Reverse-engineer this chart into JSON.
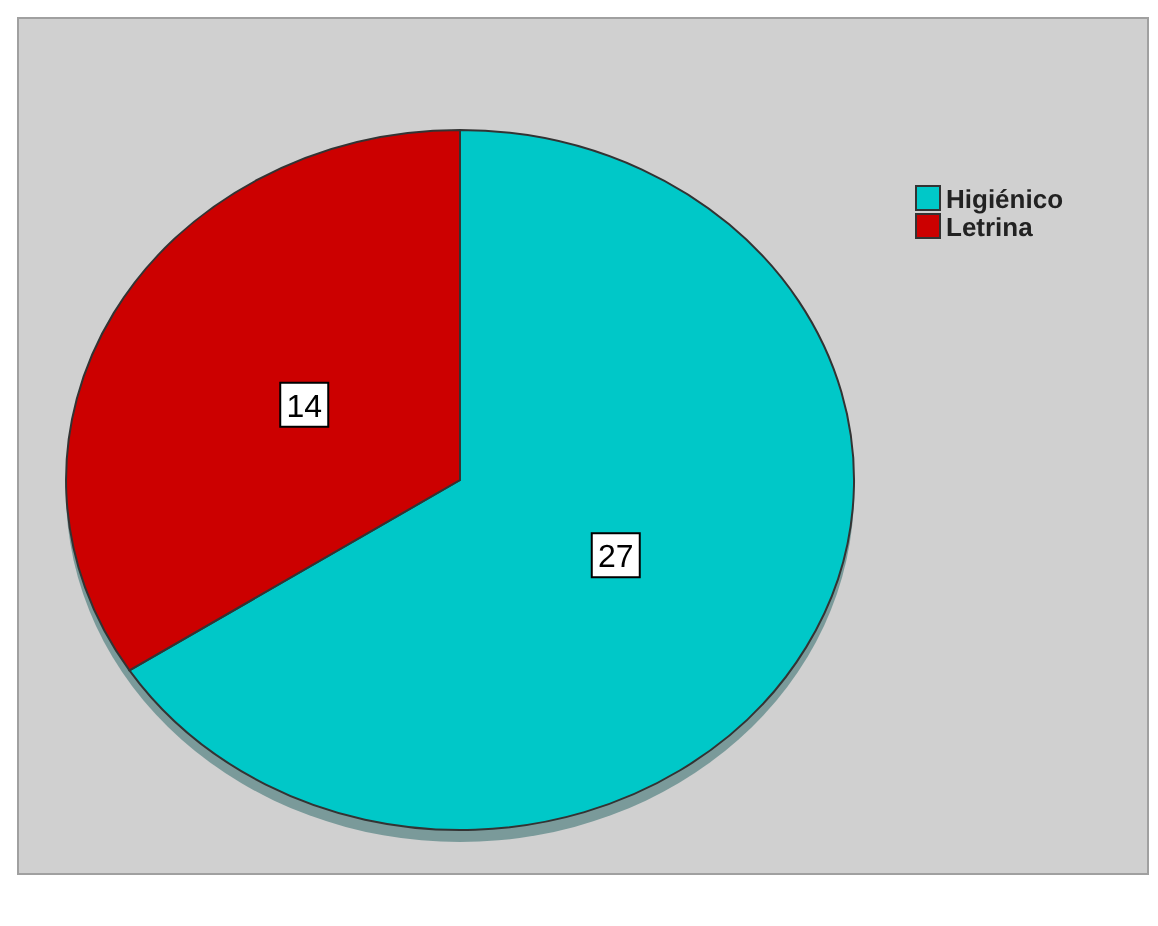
{
  "chart_data": {
    "type": "pie",
    "categories": [
      "Higiénico",
      "Letrina"
    ],
    "values": [
      27,
      14
    ],
    "colors": [
      "#00c8c8",
      "#cc0000"
    ],
    "data_labels": true,
    "legend": "top right"
  }
}
